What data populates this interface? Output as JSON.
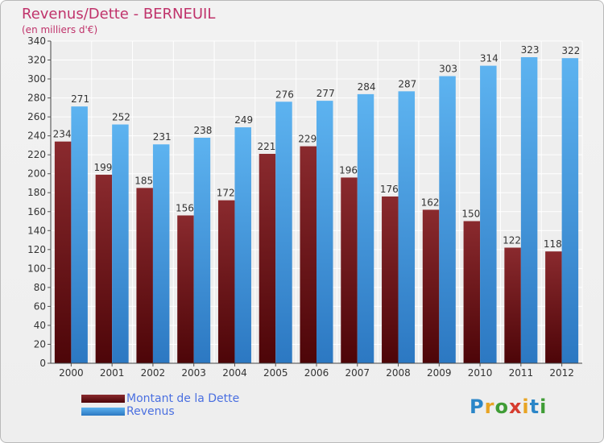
{
  "title": "Revenus/Dette - BERNEUIL",
  "subtitle": "(en milliers d'€)",
  "logo": {
    "text": "Proxiti",
    "letter_colors": [
      "#2b86c8",
      "#e8a424",
      "#3f9c35",
      "#d63c2f",
      "#e8a424",
      "#2b86c8",
      "#3f9c35"
    ]
  },
  "chart_data": {
    "type": "bar",
    "categories": [
      "2000",
      "2001",
      "2002",
      "2003",
      "2004",
      "2005",
      "2006",
      "2007",
      "2008",
      "2009",
      "2010",
      "2011",
      "2012"
    ],
    "series": [
      {
        "name": "Montant de la Dette",
        "color": "#7a1a1e",
        "values": [
          234,
          199,
          185,
          156,
          172,
          221,
          229,
          196,
          176,
          162,
          150,
          122,
          118
        ]
      },
      {
        "name": "Revenus",
        "color": "#4aa3e8",
        "values": [
          271,
          252,
          231,
          238,
          249,
          276,
          277,
          284,
          287,
          303,
          314,
          323,
          322
        ]
      }
    ],
    "ylim": [
      0,
      340
    ],
    "yticks": [
      0,
      20,
      40,
      60,
      80,
      100,
      120,
      140,
      160,
      180,
      200,
      220,
      240,
      260,
      280,
      300,
      320,
      340
    ],
    "grid": true,
    "legend": "bottom-left"
  }
}
